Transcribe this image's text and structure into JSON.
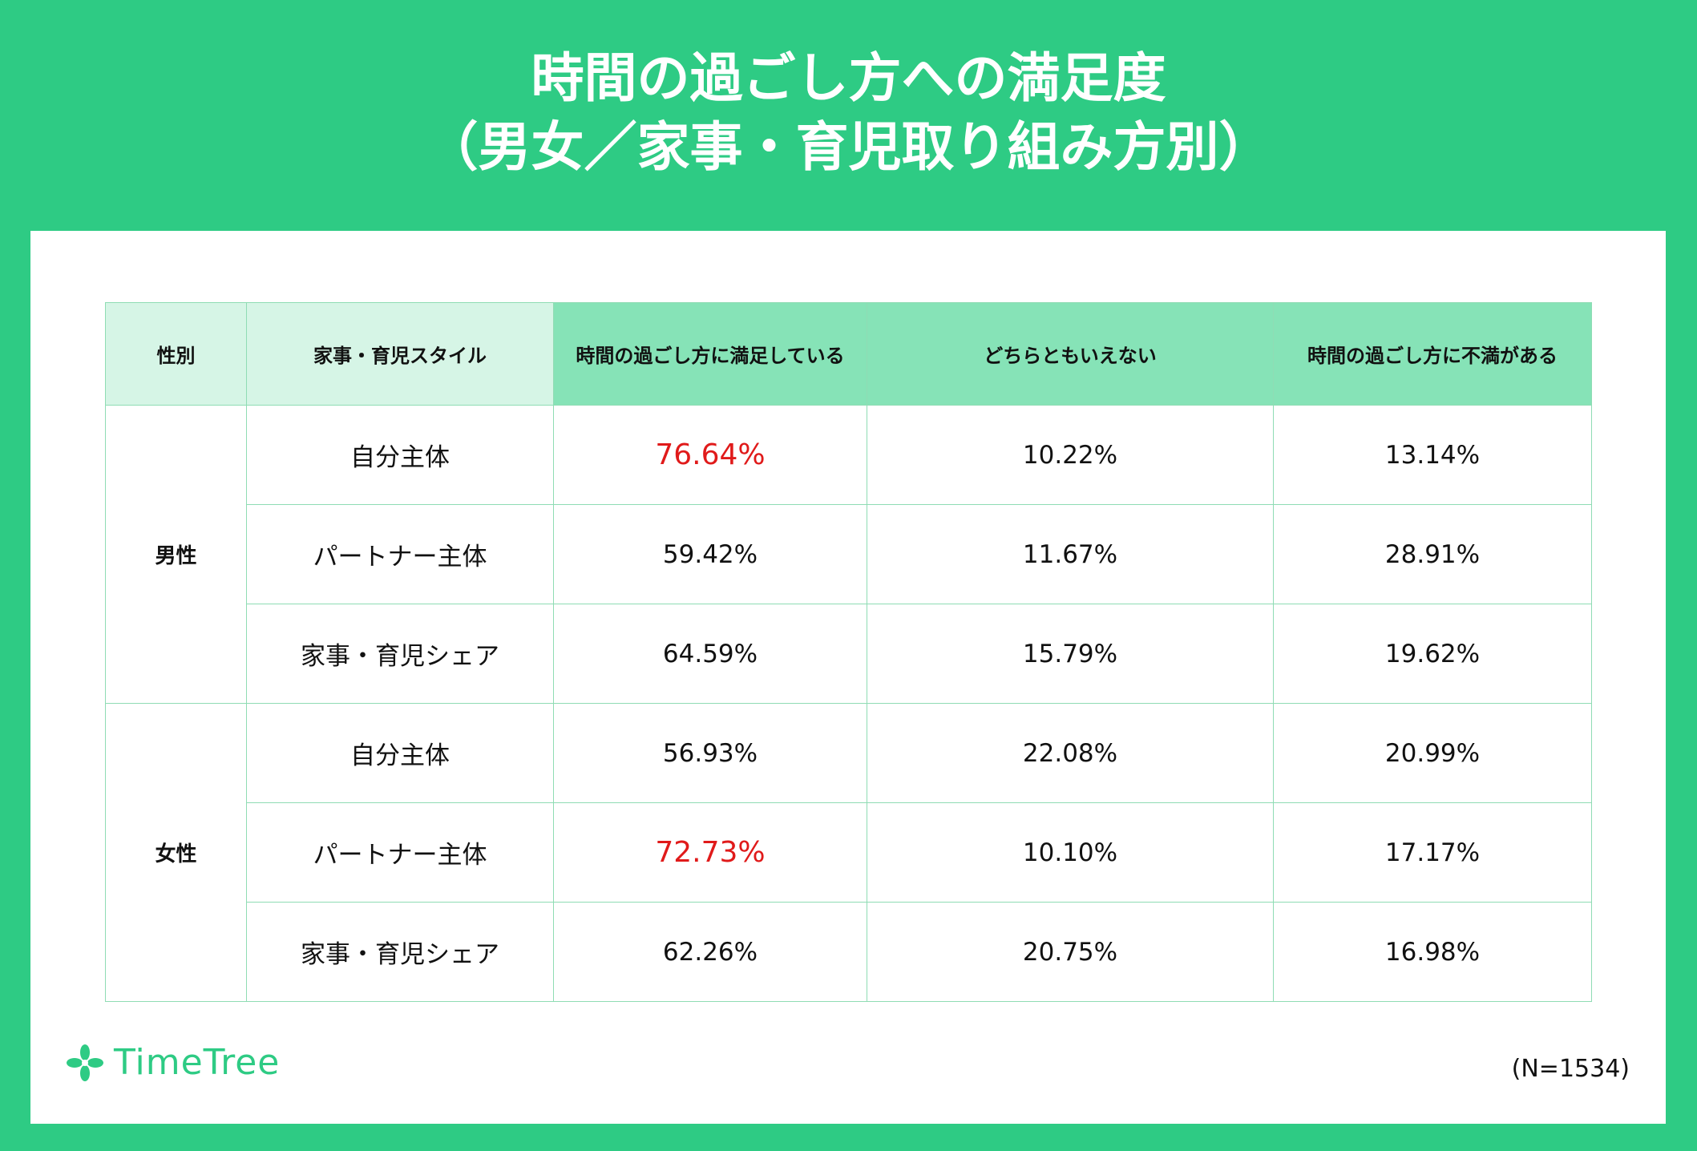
{
  "title": {
    "line1": "時間の過ごし方への満足度",
    "line2": "（男女／家事・育児取り組み方別）"
  },
  "chart_data": {
    "type": "table",
    "columns": [
      "性別",
      "家事・育児スタイル",
      "時間の過ごし方に満足している",
      "どちらともいえない",
      "時間の過ごし方に不満がある"
    ],
    "groups": [
      {
        "gender": "男性",
        "rows": [
          {
            "style": "自分主体",
            "values": [
              "76.64%",
              "10.22%",
              "13.14%"
            ]
          },
          {
            "style": "パートナー主体",
            "values": [
              "59.42%",
              "11.67%",
              "28.91%"
            ]
          },
          {
            "style": "家事・育児シェア",
            "values": [
              "64.59%",
              "15.79%",
              "19.62%"
            ]
          }
        ]
      },
      {
        "gender": "女性",
        "rows": [
          {
            "style": "自分主体",
            "values": [
              "56.93%",
              "22.08%",
              "20.99%"
            ]
          },
          {
            "style": "パートナー主体",
            "values": [
              "72.73%",
              "10.10%",
              "17.17%"
            ]
          },
          {
            "style": "家事・育児シェア",
            "values": [
              "62.26%",
              "20.75%",
              "16.98%"
            ]
          }
        ]
      }
    ],
    "highlight_color": "#e01a1a"
  },
  "footer": {
    "brand": "TimeTree",
    "brand_icon": "clover-icon",
    "sample_size": "(N=1534)"
  },
  "colors": {
    "background": "#2ecb84",
    "header_light": "#d6f5e6",
    "header_mid": "#86e3b7",
    "border": "#8fdcb4"
  }
}
